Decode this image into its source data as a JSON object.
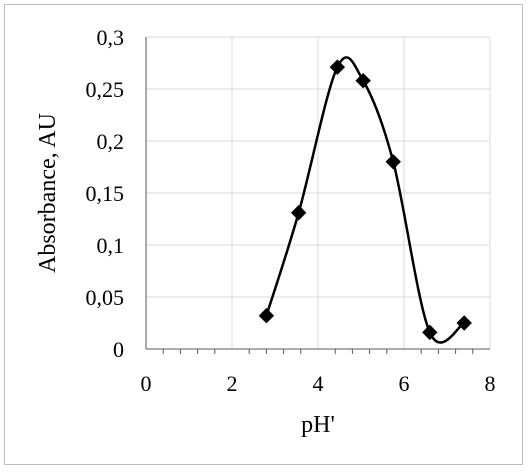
{
  "chart_data": {
    "type": "scatter",
    "title": "",
    "xlabel": "pH'",
    "ylabel": "Absorbance, AU",
    "xlim": [
      0,
      8
    ],
    "ylim": [
      0,
      0.3
    ],
    "x_major_ticks": [
      0,
      2,
      4,
      6,
      8
    ],
    "x_tick_labels": [
      "0",
      "2",
      "4",
      "6",
      "8"
    ],
    "x_minor_step": 0.4,
    "y_ticks": [
      0,
      0.05,
      0.1,
      0.15,
      0.2,
      0.25,
      0.3
    ],
    "y_tick_labels": [
      "0",
      "0,05",
      "0,1",
      "0,15",
      "0,2",
      "0,25",
      "0,3"
    ],
    "grid": true,
    "legend": "none",
    "line_style": "smooth",
    "series": [
      {
        "color": "#000000",
        "marker": "diamond",
        "x": [
          2.8,
          3.55,
          4.45,
          5.05,
          5.75,
          6.6,
          7.4
        ],
        "y": [
          0.032,
          0.131,
          0.271,
          0.258,
          0.18,
          0.016,
          0.025
        ]
      }
    ]
  }
}
